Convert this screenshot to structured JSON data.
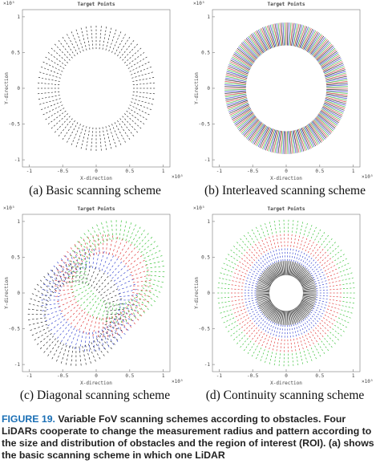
{
  "panels": [
    {
      "title": "Target Points",
      "caption": "(a) Basic scanning scheme",
      "x_label": "X-direction",
      "y_label": "Y-direction",
      "x_exponent": "×10⁵",
      "y_exponent": "×10⁵",
      "ticks": [
        "-1",
        "-0.5",
        "0",
        "0.5",
        "1"
      ]
    },
    {
      "title": "Target Points",
      "caption": "(b) Interleaved scanning scheme",
      "x_label": "X-direction",
      "y_label": "Y-direction",
      "x_exponent": "×10⁵",
      "y_exponent": "×10⁵",
      "ticks": [
        "-1",
        "-0.5",
        "0",
        "0.5",
        "1"
      ]
    },
    {
      "title": "Target Points",
      "caption": "(c) Diagonal scanning scheme",
      "x_label": "X-direction",
      "y_label": "Y-direction",
      "x_exponent": "×10⁵",
      "y_exponent": "×10⁵",
      "ticks": [
        "-1",
        "-0.5",
        "0",
        "0.5",
        "1"
      ]
    },
    {
      "title": "Target Points",
      "caption": "(d) Continuity scanning scheme",
      "x_label": "X-direction",
      "y_label": "Y-direction",
      "x_exponent": "×10⁵",
      "y_exponent": "×10⁵",
      "ticks": [
        "-1",
        "-0.5",
        "0",
        "0.5",
        "1"
      ]
    }
  ],
  "figure_caption": {
    "label": "FIGURE 19.",
    "text": "Variable FoV scanning schemes according to obstacles. Four LiDARs cooperate to change the measurement radius and pattern according to the size and distribution of obstacles and the region of interest (ROI). (a) shows the basic scanning scheme in which one LiDAR"
  }
}
